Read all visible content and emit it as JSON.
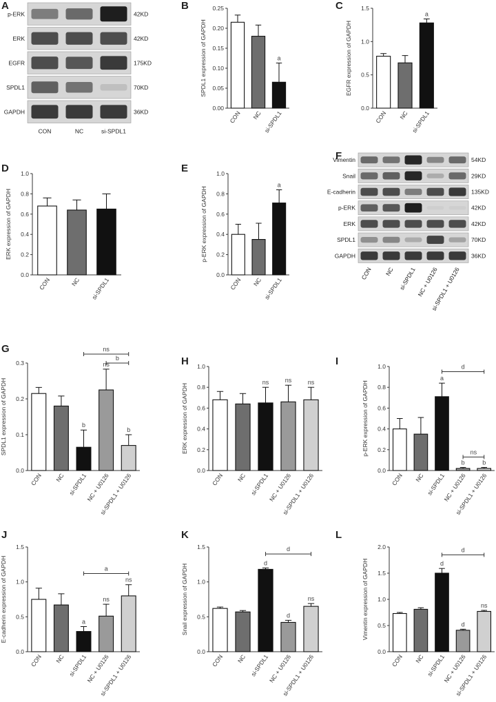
{
  "panels": {
    "A": "A",
    "B": "B",
    "C": "C",
    "D": "D",
    "E": "E",
    "F": "F",
    "G": "G",
    "H": "H",
    "I": "I",
    "J": "J",
    "K": "K",
    "L": "L"
  },
  "blot_A": {
    "rows": [
      {
        "name": "p-ERK",
        "kd": "42KD",
        "intensity": [
          0.45,
          0.55,
          0.95
        ]
      },
      {
        "name": "ERK",
        "kd": "42KD",
        "intensity": [
          0.7,
          0.7,
          0.7
        ]
      },
      {
        "name": "EGFR",
        "kd": "175KD",
        "intensity": [
          0.7,
          0.65,
          0.8
        ]
      },
      {
        "name": "SPDL1",
        "kd": "70KD",
        "intensity": [
          0.6,
          0.5,
          0.1
        ]
      },
      {
        "name": "GAPDH",
        "kd": "36KD",
        "intensity": [
          0.8,
          0.8,
          0.8
        ]
      }
    ],
    "lanes": [
      "CON",
      "NC",
      "si-SPDL1"
    ]
  },
  "blot_F": {
    "rows": [
      {
        "name": "Vimentin",
        "kd": "54KD",
        "intensity": [
          0.55,
          0.5,
          0.9,
          0.4,
          0.55
        ]
      },
      {
        "name": "Snail",
        "kd": "29KD",
        "intensity": [
          0.55,
          0.6,
          0.9,
          0.2,
          0.55
        ]
      },
      {
        "name": "E-cadherin",
        "kd": "135KD",
        "intensity": [
          0.7,
          0.7,
          0.45,
          0.7,
          0.8
        ]
      },
      {
        "name": "p-ERK",
        "kd": "42KD",
        "intensity": [
          0.6,
          0.65,
          0.95,
          0.02,
          0.02
        ]
      },
      {
        "name": "ERK",
        "kd": "42KD",
        "intensity": [
          0.7,
          0.7,
          0.7,
          0.7,
          0.7
        ]
      },
      {
        "name": "SPDL1",
        "kd": "70KD",
        "intensity": [
          0.35,
          0.4,
          0.2,
          0.75,
          0.25
        ]
      },
      {
        "name": "GAPDH",
        "kd": "36KD",
        "intensity": [
          0.8,
          0.8,
          0.8,
          0.8,
          0.8
        ]
      }
    ],
    "lanes": [
      "CON",
      "NC",
      "si-SPDL1",
      "NC + U0126",
      "si-SPDL1 + U0126"
    ]
  },
  "colors": {
    "CON": "#ffffff",
    "NC": "#6e6e6e",
    "si-SPDL1": "#111111",
    "NC + U0126": "#9a9a9a",
    "si-SPDL1 + U0126": "#d0d0d0"
  },
  "chart_data": [
    {
      "id": "B",
      "type": "bar",
      "ylabel": "SPDL1 expression of GAPDH",
      "categories": [
        "CON",
        "NC",
        "si-SPDL1"
      ],
      "values": [
        0.215,
        0.18,
        0.065
      ],
      "errors": [
        0.018,
        0.028,
        0.048
      ],
      "ylim": [
        0,
        0.25
      ],
      "yticks": [
        "0.00",
        "0.05",
        "0.10",
        "0.15",
        "0.20",
        "0.25"
      ],
      "sig": [
        "",
        "",
        "a"
      ],
      "brackets": []
    },
    {
      "id": "C",
      "type": "bar",
      "ylabel": "EGFR expression of GAPDH",
      "categories": [
        "CON",
        "NC",
        "si-SPDL1"
      ],
      "values": [
        0.78,
        0.68,
        1.28
      ],
      "errors": [
        0.04,
        0.11,
        0.06
      ],
      "ylim": [
        0,
        1.5
      ],
      "yticks": [
        "0.0",
        "0.5",
        "1.0",
        "1.5"
      ],
      "sig": [
        "",
        "",
        "a"
      ],
      "brackets": []
    },
    {
      "id": "D",
      "type": "bar",
      "ylabel": "ERK expression of GAPDH",
      "categories": [
        "CON",
        "NC",
        "si-SPDL1"
      ],
      "values": [
        0.68,
        0.64,
        0.65
      ],
      "errors": [
        0.08,
        0.1,
        0.15
      ],
      "ylim": [
        0,
        1.0
      ],
      "yticks": [
        "0.0",
        "0.2",
        "0.4",
        "0.6",
        "0.8",
        "1.0"
      ],
      "sig": [
        "",
        "",
        ""
      ],
      "brackets": []
    },
    {
      "id": "E",
      "type": "bar",
      "ylabel": "p-ERK expression of GAPDH",
      "categories": [
        "CON",
        "NC",
        "si-SPDL1"
      ],
      "values": [
        0.4,
        0.35,
        0.71
      ],
      "errors": [
        0.1,
        0.16,
        0.13
      ],
      "ylim": [
        0,
        1.0
      ],
      "yticks": [
        "0.0",
        "0.2",
        "0.4",
        "0.6",
        "0.8",
        "1.0"
      ],
      "sig": [
        "",
        "",
        "a"
      ],
      "brackets": []
    },
    {
      "id": "G",
      "type": "bar",
      "ylabel": "SPDL1 expression of GAPDH",
      "categories": [
        "CON",
        "NC",
        "si-SPDL1",
        "NC + U0126",
        "si-SPDL1 + U0126"
      ],
      "values": [
        0.215,
        0.18,
        0.065,
        0.225,
        0.07
      ],
      "errors": [
        0.017,
        0.028,
        0.048,
        0.058,
        0.03
      ],
      "ylim": [
        0,
        0.3
      ],
      "yticks": [
        "0.0",
        "0.1",
        "0.2",
        "0.3"
      ],
      "sig": [
        "",
        "",
        "b",
        "ns",
        "b"
      ],
      "brackets": [
        {
          "from": 2,
          "to": 4,
          "label": "ns",
          "y": 0.325
        },
        {
          "from": 3,
          "to": 4,
          "label": "b",
          "y": 0.3
        }
      ]
    },
    {
      "id": "H",
      "type": "bar",
      "ylabel": "ERK expression of GAPDH",
      "categories": [
        "CON",
        "NC",
        "si-SPDL1",
        "NC + U0126",
        "si-SPDL1 + U0126"
      ],
      "values": [
        0.68,
        0.64,
        0.65,
        0.66,
        0.68
      ],
      "errors": [
        0.08,
        0.1,
        0.15,
        0.16,
        0.12
      ],
      "ylim": [
        0,
        1.0
      ],
      "yticks": [
        "0.0",
        "0.2",
        "0.4",
        "0.6",
        "0.8",
        "1.0"
      ],
      "sig": [
        "",
        "",
        "ns",
        "ns",
        "ns"
      ],
      "brackets": []
    },
    {
      "id": "I",
      "type": "bar",
      "ylabel": "p-ERK expression of GAPDH",
      "categories": [
        "CON",
        "NC",
        "si-SPDL1",
        "NC + U0126",
        "si-SPDL1 + U0126"
      ],
      "values": [
        0.4,
        0.35,
        0.71,
        0.02,
        0.02
      ],
      "errors": [
        0.1,
        0.16,
        0.13,
        0.01,
        0.01
      ],
      "ylim": [
        0,
        1.0
      ],
      "yticks": [
        "0.0",
        "0.2",
        "0.4",
        "0.6",
        "0.8",
        "1.0"
      ],
      "sig": [
        "",
        "",
        "a",
        "b",
        "b"
      ],
      "brackets": [
        {
          "from": 2,
          "to": 4,
          "label": "d",
          "y": 0.95
        },
        {
          "from": 3,
          "to": 4,
          "label": "ns",
          "y": 0.13
        }
      ]
    },
    {
      "id": "J",
      "type": "bar",
      "ylabel": "E-cadherin expression of GAPDH",
      "categories": [
        "CON",
        "NC",
        "si-SPDL1",
        "NC + U0126",
        "si-SPDL1 + U0126"
      ],
      "values": [
        0.75,
        0.67,
        0.29,
        0.51,
        0.8
      ],
      "errors": [
        0.16,
        0.16,
        0.07,
        0.17,
        0.16
      ],
      "ylim": [
        0,
        1.5
      ],
      "yticks": [
        "0.0",
        "0.5",
        "1.0",
        "1.5"
      ],
      "sig": [
        "",
        "",
        "a",
        "ns",
        "ns"
      ],
      "brackets": [
        {
          "from": 2,
          "to": 4,
          "label": "a",
          "y": 1.12
        }
      ]
    },
    {
      "id": "K",
      "type": "bar",
      "ylabel": "Snail expression of GAPDH",
      "categories": [
        "CON",
        "NC",
        "si-SPDL1",
        "NC + U0126",
        "si-SPDL1 + U0126"
      ],
      "values": [
        0.62,
        0.57,
        1.18,
        0.42,
        0.65
      ],
      "errors": [
        0.02,
        0.02,
        0.02,
        0.03,
        0.04
      ],
      "ylim": [
        0,
        1.5
      ],
      "yticks": [
        "0.0",
        "0.5",
        "1.0",
        "1.5"
      ],
      "sig": [
        "",
        "",
        "d",
        "d",
        "ns"
      ],
      "brackets": [
        {
          "from": 2,
          "to": 4,
          "label": "d",
          "y": 1.4
        }
      ]
    },
    {
      "id": "L",
      "type": "bar",
      "ylabel": "Vimentin expression of GAPDH",
      "categories": [
        "CON",
        "NC",
        "si-SPDL1",
        "NC + U0126",
        "si-SPDL1 + U0126"
      ],
      "values": [
        0.73,
        0.81,
        1.5,
        0.41,
        0.77
      ],
      "errors": [
        0.02,
        0.03,
        0.09,
        0.02,
        0.02
      ],
      "ylim": [
        0,
        2.0
      ],
      "yticks": [
        "0.0",
        "0.5",
        "1.0",
        "1.5",
        "2.0"
      ],
      "sig": [
        "",
        "",
        "d",
        "d",
        "ns"
      ],
      "brackets": [
        {
          "from": 2,
          "to": 4,
          "label": "d",
          "y": 1.85
        }
      ]
    }
  ]
}
